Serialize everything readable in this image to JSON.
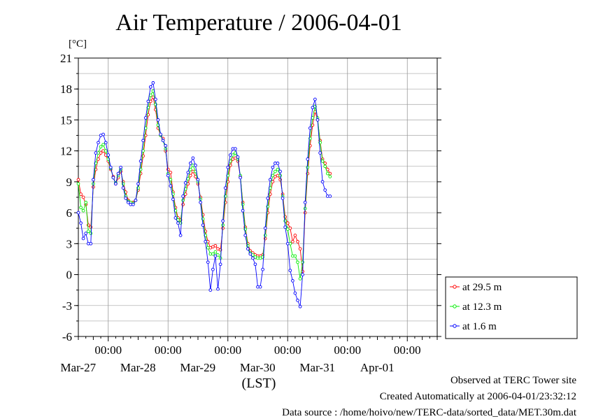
{
  "title": "Air Temperature / 2006-04-01",
  "y_unit": "[°C]",
  "x_unit": "(LST)",
  "footer": {
    "line1": "Observed at TERC Tower site",
    "line2": "Created Automatically at 2006-04-01/23:32:12",
    "line3": "Data source : /home/hoivo/new/TERC-data/sorted_data/MET.30m.dat"
  },
  "chart_data": {
    "type": "line",
    "title": "Air Temperature / 2006-04-01",
    "ylabel": "[°C]",
    "xlabel": "(LST)",
    "ylim": [
      -6,
      21
    ],
    "yticks": [
      -6,
      -3,
      0,
      3,
      6,
      9,
      12,
      15,
      18,
      21
    ],
    "xlim_hours": [
      0,
      144
    ],
    "x_unit_note": "hours from 2006-03-26 12:00 LST",
    "x_major_ticks": [
      {
        "hour": 12,
        "label": "00:00",
        "date": "Mar-27"
      },
      {
        "hour": 36,
        "label": "00:00",
        "date": "Mar-28"
      },
      {
        "hour": 60,
        "label": "00:00",
        "date": "Mar-29"
      },
      {
        "hour": 84,
        "label": "00:00",
        "date": "Mar-30"
      },
      {
        "hour": 108,
        "label": "00:00",
        "date": "Mar-31"
      },
      {
        "hour": 132,
        "label": "00:00",
        "date": "Apr-01"
      }
    ],
    "grid": true,
    "legend_position": "right",
    "series": [
      {
        "name": "at 29.5 m",
        "color": "#ff0000",
        "points": [
          [
            0,
            9.2
          ],
          [
            1,
            7.8
          ],
          [
            2,
            7.5
          ],
          [
            3,
            6.8
          ],
          [
            4,
            4.8
          ],
          [
            5,
            4.6
          ],
          [
            6,
            8.5
          ],
          [
            7,
            10.2
          ],
          [
            8,
            11.2
          ],
          [
            9,
            11.8
          ],
          [
            10,
            12.0
          ],
          [
            11,
            11.6
          ],
          [
            12,
            11.0
          ],
          [
            13,
            10.2
          ],
          [
            14,
            9.5
          ],
          [
            15,
            8.8
          ],
          [
            16,
            9.4
          ],
          [
            17,
            10.0
          ],
          [
            18,
            9.0
          ],
          [
            19,
            8.0
          ],
          [
            20,
            7.2
          ],
          [
            21,
            7.0
          ],
          [
            22,
            7.0
          ],
          [
            23,
            7.2
          ],
          [
            24,
            8.2
          ],
          [
            25,
            9.8
          ],
          [
            26,
            11.5
          ],
          [
            27,
            13.5
          ],
          [
            28,
            15.5
          ],
          [
            29,
            16.8
          ],
          [
            30,
            17.2
          ],
          [
            31,
            16.0
          ],
          [
            32,
            14.2
          ],
          [
            33,
            13.5
          ],
          [
            34,
            13.2
          ],
          [
            35,
            12.0
          ],
          [
            36,
            10.2
          ],
          [
            37,
            9.9
          ],
          [
            38,
            8.0
          ],
          [
            39,
            6.5
          ],
          [
            40,
            5.5
          ],
          [
            41,
            5.3
          ],
          [
            42,
            6.8
          ],
          [
            43,
            7.8
          ],
          [
            44,
            8.8
          ],
          [
            45,
            9.6
          ],
          [
            46,
            10.0
          ],
          [
            47,
            9.5
          ],
          [
            48,
            8.8
          ],
          [
            49,
            7.5
          ],
          [
            50,
            5.8
          ],
          [
            51,
            4.2
          ],
          [
            52,
            3.2
          ],
          [
            53,
            2.6
          ],
          [
            54,
            2.7
          ],
          [
            55,
            2.8
          ],
          [
            56,
            2.5
          ],
          [
            57,
            2.4
          ],
          [
            58,
            4.5
          ],
          [
            59,
            7.0
          ],
          [
            60,
            9.0
          ],
          [
            61,
            10.6
          ],
          [
            62,
            11.2
          ],
          [
            63,
            11.3
          ],
          [
            64,
            11.0
          ],
          [
            65,
            9.5
          ],
          [
            66,
            7.0
          ],
          [
            67,
            4.6
          ],
          [
            68,
            3.0
          ],
          [
            69,
            2.3
          ],
          [
            70,
            2.1
          ],
          [
            71,
            1.9
          ],
          [
            72,
            1.8
          ],
          [
            73,
            1.8
          ],
          [
            74,
            1.9
          ],
          [
            75,
            3.5
          ],
          [
            76,
            6.0
          ],
          [
            77,
            7.8
          ],
          [
            78,
            9.0
          ],
          [
            79,
            9.5
          ],
          [
            80,
            9.6
          ],
          [
            81,
            9.2
          ],
          [
            82,
            7.8
          ],
          [
            83,
            5.6
          ],
          [
            84,
            5.0
          ],
          [
            85,
            4.5
          ],
          [
            86,
            3.2
          ],
          [
            87,
            3.8
          ],
          [
            88,
            3.2
          ],
          [
            89,
            2.5
          ],
          [
            90,
            0.3
          ],
          [
            91,
            6.0
          ],
          [
            92,
            9.8
          ],
          [
            93,
            12.5
          ],
          [
            94,
            14.5
          ],
          [
            95,
            15.8
          ],
          [
            96,
            15.0
          ],
          [
            97,
            13.0
          ],
          [
            98,
            11.2
          ],
          [
            99,
            10.8
          ],
          [
            100,
            10.2
          ],
          [
            101,
            9.8
          ]
        ]
      },
      {
        "name": "at 12.3 m",
        "color": "#00ee00",
        "points": [
          [
            0,
            8.8
          ],
          [
            1,
            6.5
          ],
          [
            2,
            6.2
          ],
          [
            3,
            7.0
          ],
          [
            4,
            4.2
          ],
          [
            5,
            4.0
          ],
          [
            6,
            8.8
          ],
          [
            7,
            10.8
          ],
          [
            8,
            11.8
          ],
          [
            9,
            12.4
          ],
          [
            10,
            12.6
          ],
          [
            11,
            12.0
          ],
          [
            12,
            11.2
          ],
          [
            13,
            10.3
          ],
          [
            14,
            9.4
          ],
          [
            15,
            8.9
          ],
          [
            16,
            9.6
          ],
          [
            17,
            10.2
          ],
          [
            18,
            8.8
          ],
          [
            19,
            7.6
          ],
          [
            20,
            7.1
          ],
          [
            21,
            7.0
          ],
          [
            22,
            6.9
          ],
          [
            23,
            7.2
          ],
          [
            24,
            8.4
          ],
          [
            25,
            10.2
          ],
          [
            26,
            12.0
          ],
          [
            27,
            14.2
          ],
          [
            28,
            16.2
          ],
          [
            29,
            17.4
          ],
          [
            30,
            17.8
          ],
          [
            31,
            16.5
          ],
          [
            32,
            14.5
          ],
          [
            33,
            13.5
          ],
          [
            34,
            13.0
          ],
          [
            35,
            12.2
          ],
          [
            36,
            9.8
          ],
          [
            37,
            9.2
          ],
          [
            38,
            7.8
          ],
          [
            39,
            6.2
          ],
          [
            40,
            5.3
          ],
          [
            41,
            5.0
          ],
          [
            42,
            7.2
          ],
          [
            43,
            8.3
          ],
          [
            44,
            9.3
          ],
          [
            45,
            10.2
          ],
          [
            46,
            10.6
          ],
          [
            47,
            10.0
          ],
          [
            48,
            9.0
          ],
          [
            49,
            7.3
          ],
          [
            50,
            5.4
          ],
          [
            51,
            3.8
          ],
          [
            52,
            2.6
          ],
          [
            53,
            2.0
          ],
          [
            54,
            2.0
          ],
          [
            55,
            2.2
          ],
          [
            56,
            1.9
          ],
          [
            57,
            1.6
          ],
          [
            58,
            4.8
          ],
          [
            59,
            7.6
          ],
          [
            60,
            9.6
          ],
          [
            61,
            11.0
          ],
          [
            62,
            11.6
          ],
          [
            63,
            11.8
          ],
          [
            64,
            11.2
          ],
          [
            65,
            9.6
          ],
          [
            66,
            6.8
          ],
          [
            67,
            4.4
          ],
          [
            68,
            2.8
          ],
          [
            69,
            2.1
          ],
          [
            70,
            1.9
          ],
          [
            71,
            1.7
          ],
          [
            72,
            1.6
          ],
          [
            73,
            1.6
          ],
          [
            74,
            1.7
          ],
          [
            75,
            3.8
          ],
          [
            76,
            6.6
          ],
          [
            77,
            8.4
          ],
          [
            78,
            9.6
          ],
          [
            79,
            10.0
          ],
          [
            80,
            10.2
          ],
          [
            81,
            9.6
          ],
          [
            82,
            7.6
          ],
          [
            83,
            5.2
          ],
          [
            84,
            4.4
          ],
          [
            85,
            3.0
          ],
          [
            86,
            1.8
          ],
          [
            87,
            1.8
          ],
          [
            88,
            1.2
          ],
          [
            89,
            -0.4
          ],
          [
            90,
            1.2
          ],
          [
            91,
            6.4
          ],
          [
            92,
            10.4
          ],
          [
            93,
            13.2
          ],
          [
            94,
            15.2
          ],
          [
            95,
            16.3
          ],
          [
            96,
            15.2
          ],
          [
            97,
            12.8
          ],
          [
            98,
            11.0
          ],
          [
            99,
            10.5
          ],
          [
            100,
            9.8
          ],
          [
            101,
            9.5
          ]
        ]
      },
      {
        "name": "at 1.6 m",
        "color": "#0000ff",
        "points": [
          [
            0,
            6.0
          ],
          [
            1,
            5.0
          ],
          [
            2,
            3.5
          ],
          [
            3,
            4.0
          ],
          [
            4,
            3.0
          ],
          [
            5,
            3.0
          ],
          [
            6,
            9.2
          ],
          [
            7,
            11.8
          ],
          [
            8,
            12.8
          ],
          [
            9,
            13.5
          ],
          [
            10,
            13.6
          ],
          [
            11,
            12.8
          ],
          [
            12,
            11.6
          ],
          [
            13,
            10.4
          ],
          [
            14,
            9.4
          ],
          [
            15,
            8.8
          ],
          [
            16,
            9.8
          ],
          [
            17,
            10.4
          ],
          [
            18,
            8.4
          ],
          [
            19,
            7.4
          ],
          [
            20,
            7.0
          ],
          [
            21,
            6.8
          ],
          [
            22,
            6.8
          ],
          [
            23,
            7.2
          ],
          [
            24,
            8.8
          ],
          [
            25,
            11.0
          ],
          [
            26,
            13.0
          ],
          [
            27,
            15.2
          ],
          [
            28,
            16.8
          ],
          [
            29,
            18.2
          ],
          [
            30,
            18.6
          ],
          [
            31,
            17.0
          ],
          [
            32,
            15.0
          ],
          [
            33,
            13.6
          ],
          [
            34,
            13.0
          ],
          [
            35,
            12.5
          ],
          [
            36,
            9.6
          ],
          [
            37,
            8.6
          ],
          [
            38,
            7.3
          ],
          [
            39,
            5.5
          ],
          [
            40,
            5.0
          ],
          [
            41,
            3.8
          ],
          [
            42,
            7.6
          ],
          [
            43,
            8.9
          ],
          [
            44,
            9.9
          ],
          [
            45,
            10.8
          ],
          [
            46,
            11.3
          ],
          [
            47,
            10.6
          ],
          [
            48,
            9.2
          ],
          [
            49,
            7.0
          ],
          [
            50,
            4.8
          ],
          [
            51,
            3.2
          ],
          [
            52,
            1.2
          ],
          [
            53,
            -1.5
          ],
          [
            54,
            0.5
          ],
          [
            55,
            1.8
          ],
          [
            56,
            -1.4
          ],
          [
            57,
            1.0
          ],
          [
            58,
            5.2
          ],
          [
            59,
            8.4
          ],
          [
            60,
            10.4
          ],
          [
            61,
            11.6
          ],
          [
            62,
            12.2
          ],
          [
            63,
            12.2
          ],
          [
            64,
            11.4
          ],
          [
            65,
            9.4
          ],
          [
            66,
            6.2
          ],
          [
            67,
            3.8
          ],
          [
            68,
            2.5
          ],
          [
            69,
            2.0
          ],
          [
            70,
            1.6
          ],
          [
            71,
            1.0
          ],
          [
            72,
            -1.2
          ],
          [
            73,
            -1.2
          ],
          [
            74,
            0.5
          ],
          [
            75,
            4.5
          ],
          [
            76,
            7.4
          ],
          [
            77,
            9.2
          ],
          [
            78,
            10.4
          ],
          [
            79,
            10.8
          ],
          [
            80,
            10.8
          ],
          [
            81,
            10.0
          ],
          [
            82,
            7.4
          ],
          [
            83,
            4.6
          ],
          [
            84,
            3.0
          ],
          [
            85,
            0.4
          ],
          [
            86,
            -0.6
          ],
          [
            87,
            -1.8
          ],
          [
            88,
            -2.5
          ],
          [
            89,
            -3.1
          ],
          [
            90,
            0.0
          ],
          [
            91,
            7.0
          ],
          [
            92,
            11.2
          ],
          [
            93,
            14.2
          ],
          [
            94,
            16.2
          ],
          [
            95,
            17.0
          ],
          [
            96,
            15.0
          ],
          [
            97,
            11.8
          ],
          [
            98,
            9.0
          ],
          [
            99,
            8.2
          ],
          [
            100,
            7.6
          ],
          [
            101,
            7.6
          ]
        ]
      }
    ]
  }
}
